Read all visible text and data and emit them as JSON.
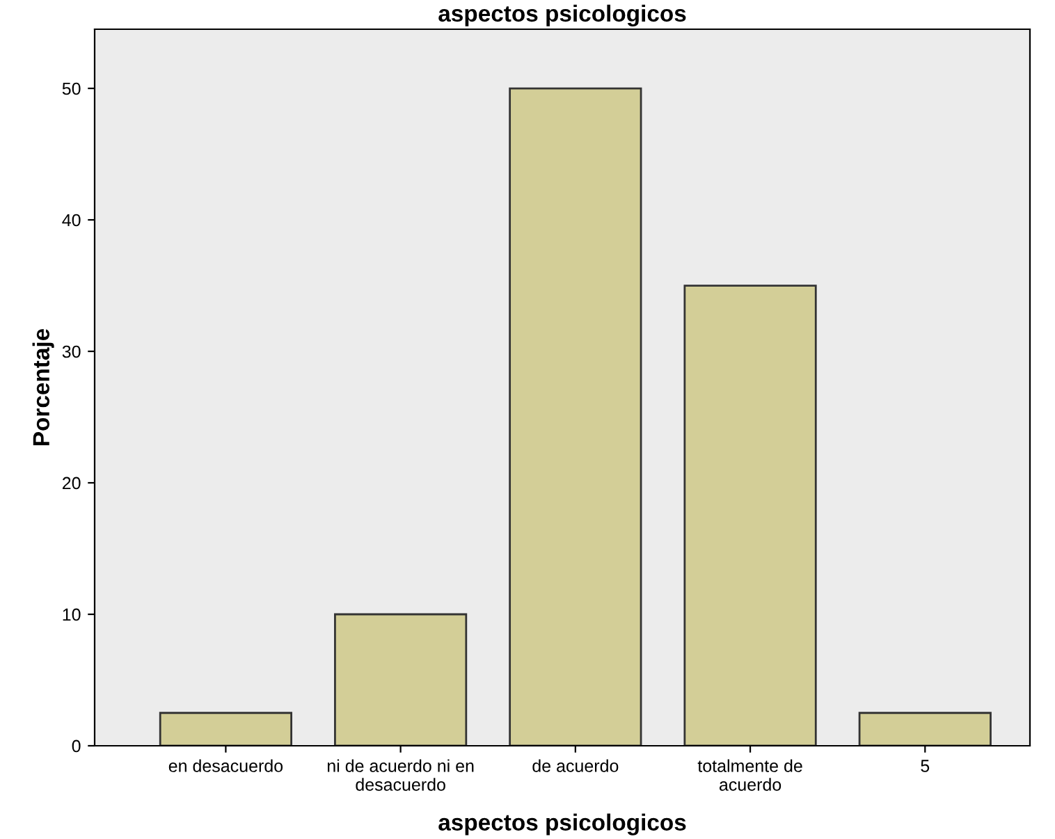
{
  "chart_data": {
    "type": "bar",
    "title": "aspectos psicologicos",
    "xlabel": "aspectos psicologicos",
    "ylabel": "Porcentaje",
    "categories": [
      "en desacuerdo",
      "ni de acuerdo ni en\ndesacuerdo",
      "de acuerdo",
      "totalmente de\nacuerdo",
      "5"
    ],
    "values": [
      2.5,
      10,
      50,
      35,
      2.5
    ],
    "color": "#d3ce97",
    "ylim": [
      0,
      54.5
    ],
    "yticks": [
      0,
      10,
      20,
      30,
      40,
      50
    ],
    "grid": false,
    "legend": false
  }
}
